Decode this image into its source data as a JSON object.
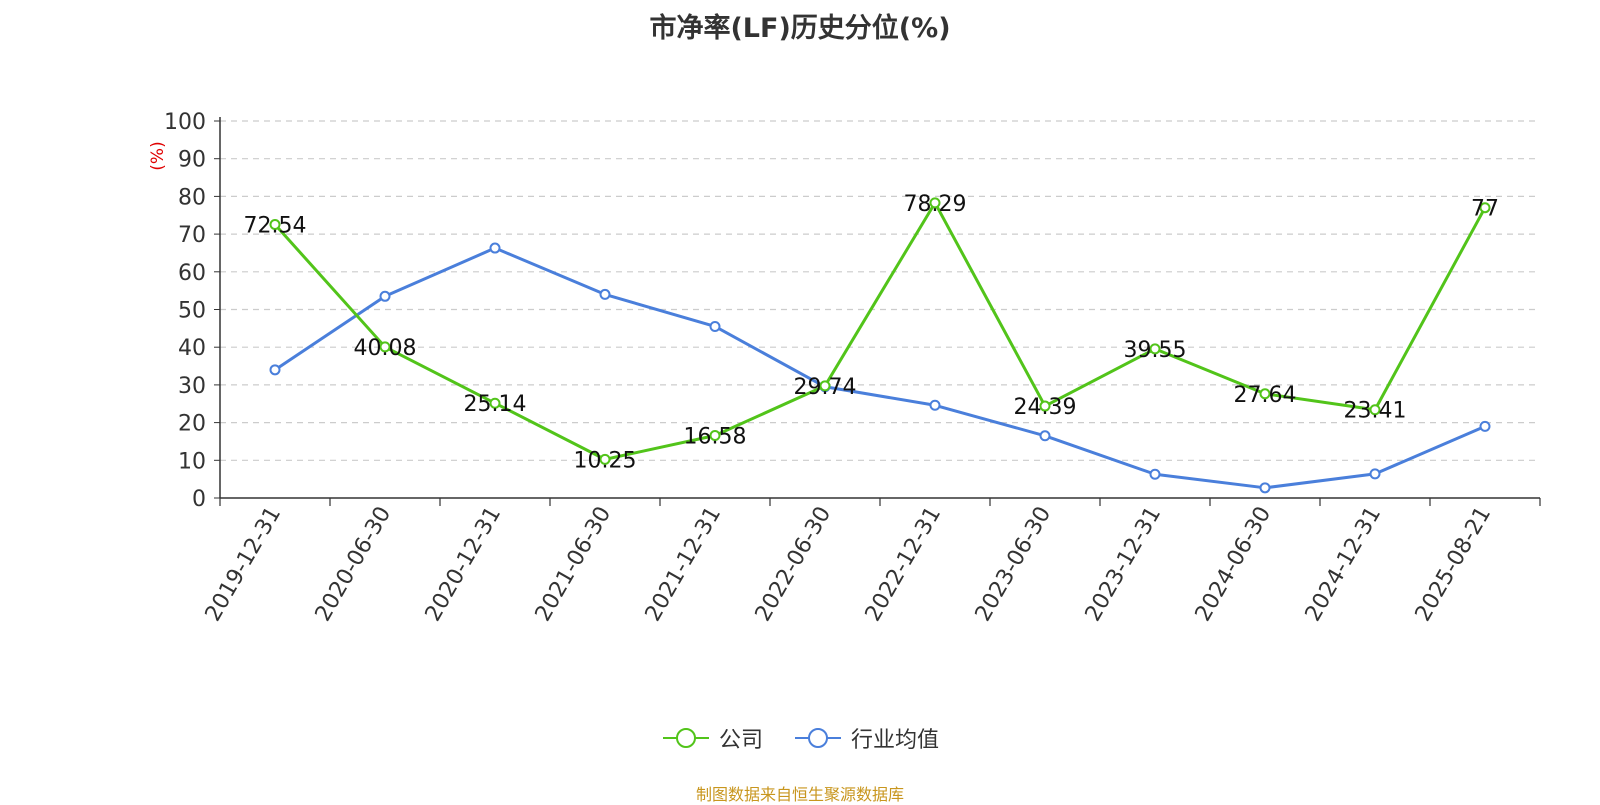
{
  "title": "市净率(LF)历史分位(%)",
  "source_note": "制图数据来自恒生聚源数据库",
  "colors": {
    "company": "#52c41a",
    "industry": "#4a7fdb",
    "axis_unit": "#e00000",
    "grid": "#cccccc",
    "axis": "#333333"
  },
  "chart_data": {
    "type": "line",
    "title": "市净率(LF)历史分位(%)",
    "ylabel": "(%)",
    "ylim": [
      0,
      100
    ],
    "yticks": [
      0,
      10,
      20,
      30,
      40,
      50,
      60,
      70,
      80,
      90,
      100
    ],
    "grid": true,
    "legend_position": "bottom",
    "categories": [
      "2019-12-31",
      "2020-06-30",
      "2020-12-31",
      "2021-06-30",
      "2021-12-31",
      "2022-06-30",
      "2022-12-31",
      "2023-06-30",
      "2023-12-31",
      "2024-06-30",
      "2024-12-31",
      "2025-08-21"
    ],
    "series": [
      {
        "name": "公司",
        "color": "#52c41a",
        "values": [
          72.54,
          40.08,
          25.14,
          10.25,
          16.58,
          29.74,
          78.29,
          24.39,
          39.55,
          27.64,
          23.41,
          77
        ],
        "labels_shown": true
      },
      {
        "name": "行业均值",
        "color": "#4a7fdb",
        "values": [
          34,
          53.5,
          66.3,
          54,
          45.5,
          29.5,
          24.6,
          16.5,
          6.3,
          2.7,
          6.4,
          19
        ],
        "labels_shown": false
      }
    ]
  }
}
